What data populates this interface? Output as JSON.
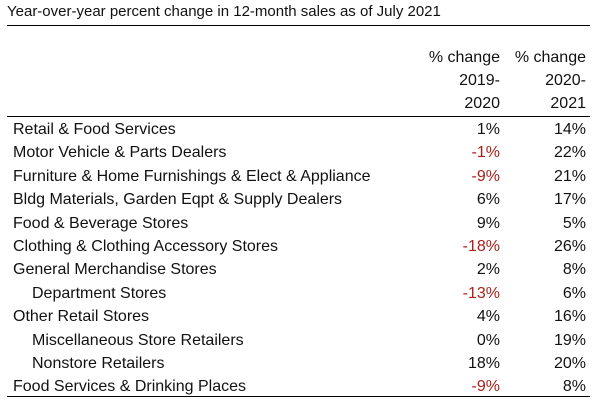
{
  "chart_data": {
    "type": "table",
    "title": "Year-over-year percent change in 12-month sales as of July 2021",
    "columns": [
      {
        "line1": "% change",
        "line2": "2019-",
        "line3": "2020"
      },
      {
        "line1": "% change",
        "line2": "2020-",
        "line3": "2021"
      }
    ],
    "rows": [
      {
        "label": "Retail & Food Services",
        "indent": false,
        "v2019_2020": "1%",
        "v2020_2021": "14%",
        "neg1": false
      },
      {
        "label": "Motor Vehicle & Parts Dealers",
        "indent": false,
        "v2019_2020": "-1%",
        "v2020_2021": "22%",
        "neg1": true
      },
      {
        "label": "Furniture & Home Furnishings & Elect & Appliance",
        "indent": false,
        "v2019_2020": "-9%",
        "v2020_2021": "21%",
        "neg1": true
      },
      {
        "label": "Bldg Materials, Garden Eqpt & Supply Dealers",
        "indent": false,
        "v2019_2020": "6%",
        "v2020_2021": "17%",
        "neg1": false
      },
      {
        "label": "Food & Beverage Stores",
        "indent": false,
        "v2019_2020": "9%",
        "v2020_2021": "5%",
        "neg1": false
      },
      {
        "label": "Clothing & Clothing Accessory Stores",
        "indent": false,
        "v2019_2020": "-18%",
        "v2020_2021": "26%",
        "neg1": true
      },
      {
        "label": "General Merchandise Stores",
        "indent": false,
        "v2019_2020": "2%",
        "v2020_2021": "8%",
        "neg1": false
      },
      {
        "label": "Department Stores",
        "indent": true,
        "v2019_2020": "-13%",
        "v2020_2021": "6%",
        "neg1": true
      },
      {
        "label": "Other Retail Stores",
        "indent": false,
        "v2019_2020": "4%",
        "v2020_2021": "16%",
        "neg1": false
      },
      {
        "label": "Miscellaneous Store Retailers",
        "indent": true,
        "v2019_2020": "0%",
        "v2020_2021": "19%",
        "neg1": false
      },
      {
        "label": "Nonstore Retailers",
        "indent": true,
        "v2019_2020": "18%",
        "v2020_2021": "20%",
        "neg1": false
      },
      {
        "label": "Food Services & Drinking Places",
        "indent": false,
        "v2019_2020": "-9%",
        "v2020_2021": "8%",
        "neg1": true
      }
    ],
    "colors": {
      "negative": "#a8201a",
      "text": "#111111"
    }
  }
}
